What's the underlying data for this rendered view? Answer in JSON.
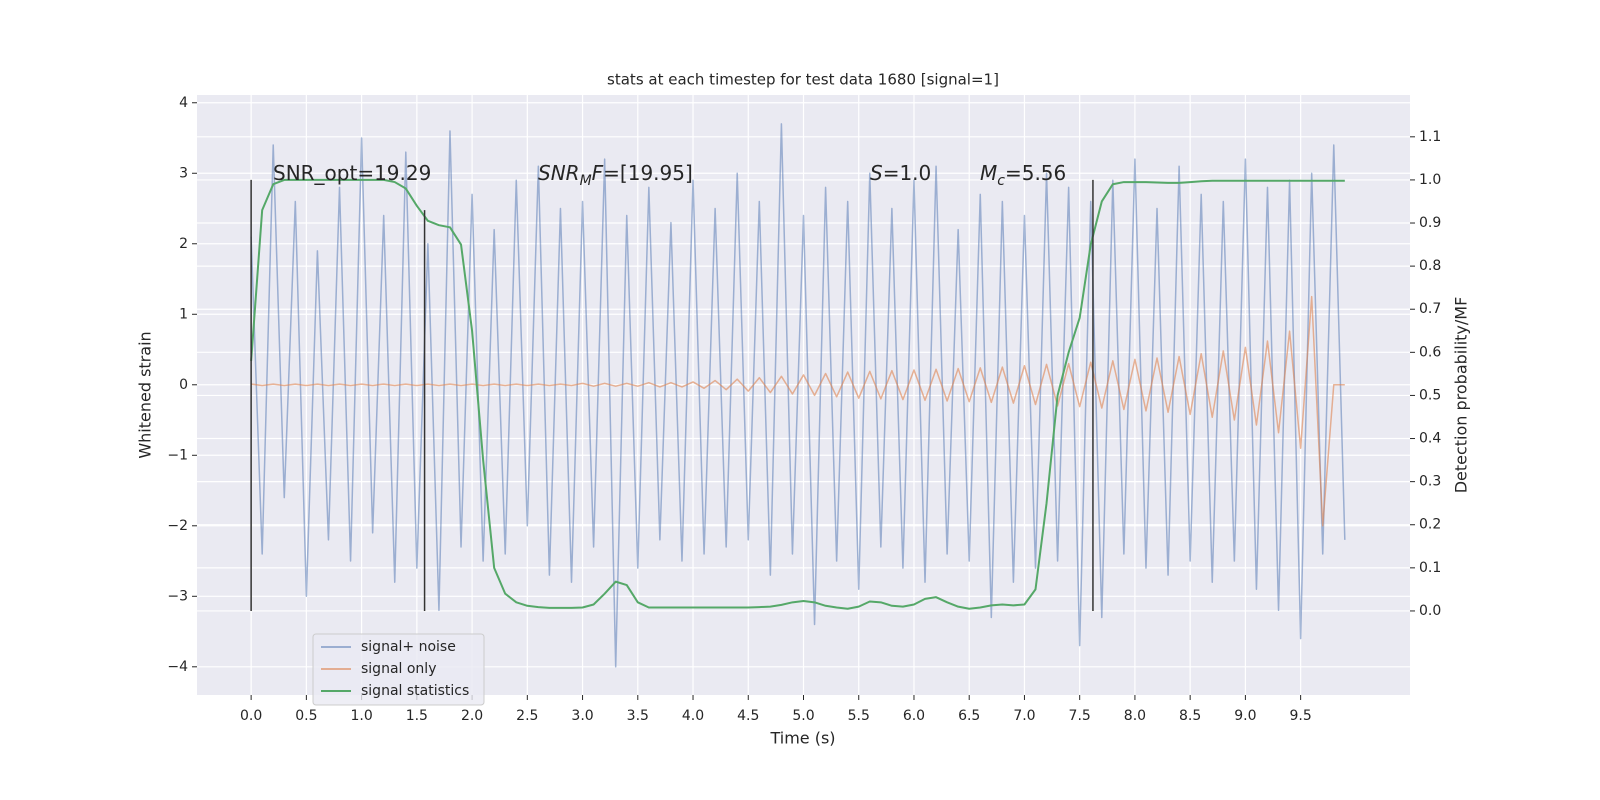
{
  "chart_data": {
    "type": "line",
    "title": "stats at each timestep for test data 1680 [signal=1]",
    "x_label": "Time (s)",
    "y_label": "Whitened strain",
    "y2_label": "Detection probability/MF",
    "xlim": [
      -0.49,
      10.49
    ],
    "ylim": [
      -4.4,
      4.11
    ],
    "y2lim": [
      -0.195,
      1.197
    ],
    "xticks": [
      {
        "value": 0,
        "label": "0.0"
      },
      0.5,
      {
        "value": 1,
        "label": "1.0"
      },
      1.5,
      {
        "value": 2,
        "label": "2.0"
      },
      2.5,
      {
        "value": 3,
        "label": "3.0"
      },
      3.5,
      {
        "value": 4,
        "label": "4.0"
      },
      4.5,
      {
        "value": 5,
        "label": "5.0"
      },
      5.5,
      {
        "value": 6,
        "label": "6.0"
      },
      6.5,
      {
        "value": 7,
        "label": "7.0"
      },
      7.5,
      {
        "value": 8,
        "label": "8.0"
      },
      8.5,
      {
        "value": 9,
        "label": "9.0"
      },
      9.5
    ],
    "yticks": [
      {
        "value": -4,
        "label": "−4"
      },
      {
        "value": -3,
        "label": "−3"
      },
      {
        "value": -2,
        "label": "−2"
      },
      {
        "value": -1,
        "label": "−1"
      },
      0,
      1,
      2,
      3,
      4
    ],
    "y2ticks": [
      {
        "value": 0,
        "label": "0.0"
      },
      0.1,
      0.2,
      0.3,
      0.4,
      0.5,
      0.6,
      0.7,
      0.8,
      0.9,
      {
        "value": 1,
        "label": "1.0"
      },
      1.1
    ],
    "grid": true,
    "legend": "lower left",
    "x": [
      0,
      0.1,
      0.2,
      0.3,
      0.4,
      0.5,
      0.6,
      0.7,
      0.8,
      0.9,
      1,
      1.1,
      1.2,
      1.3,
      1.4,
      1.5,
      1.6,
      1.7,
      1.8,
      1.9,
      2,
      2.1,
      2.2,
      2.3,
      2.4,
      2.5,
      2.6,
      2.7,
      2.8,
      2.9,
      3,
      3.1,
      3.2,
      3.3,
      3.4,
      3.5,
      3.6,
      3.7,
      3.8,
      3.9,
      4,
      4.1,
      4.2,
      4.3,
      4.4,
      4.5,
      4.6,
      4.7,
      4.8,
      4.9,
      5,
      5.1,
      5.2,
      5.3,
      5.4,
      5.5,
      5.6,
      5.7,
      5.8,
      5.9,
      6,
      6.1,
      6.2,
      6.3,
      6.4,
      6.5,
      6.6,
      6.7,
      6.8,
      6.9,
      7,
      7.1,
      7.2,
      7.3,
      7.4,
      7.5,
      7.6,
      7.7,
      7.8,
      7.9,
      8,
      8.1,
      8.2,
      8.3,
      8.4,
      8.5,
      8.6,
      8.7,
      8.8,
      8.9,
      9,
      9.1,
      9.2,
      9.3,
      9.4,
      9.5,
      9.6,
      9.7,
      9.8,
      9.9
    ],
    "series": [
      {
        "name": "signal+ noise",
        "color": "#4c72b0",
        "alpha": 0.5,
        "values": [
          2.1,
          -2.4,
          3.4,
          -1.6,
          2.6,
          -3.0,
          1.9,
          -2.2,
          2.8,
          -2.5,
          3.5,
          -2.1,
          2.4,
          -2.8,
          3.3,
          -2.6,
          2.0,
          -3.2,
          3.6,
          -2.3,
          2.7,
          -2.5,
          2.2,
          -2.4,
          2.9,
          -2.0,
          3.1,
          -2.7,
          2.5,
          -2.8,
          2.6,
          -2.3,
          3.2,
          -4.0,
          2.4,
          -2.6,
          2.8,
          -2.2,
          2.3,
          -2.5,
          2.9,
          -2.4,
          2.5,
          -2.3,
          3.0,
          -2.2,
          2.6,
          -2.7,
          3.7,
          -2.4,
          2.4,
          -3.4,
          2.8,
          -2.5,
          2.6,
          -2.9,
          3.0,
          -2.3,
          2.5,
          -2.6,
          2.9,
          -2.8,
          3.1,
          -2.4,
          2.2,
          -2.5,
          2.7,
          -3.3,
          2.6,
          -2.8,
          2.4,
          -2.6,
          3.0,
          -2.5,
          2.8,
          -3.7,
          2.6,
          -3.3,
          2.9,
          -2.4,
          3.2,
          -2.6,
          2.5,
          -2.7,
          3.1,
          -2.5,
          2.7,
          -2.8,
          2.6,
          -2.5,
          3.2,
          -2.9,
          2.8,
          -3.2,
          2.9,
          -3.6,
          3.0,
          -2.4,
          3.4,
          -2.2
        ]
      },
      {
        "name": "signal only",
        "color": "#dd8452",
        "alpha": 0.6,
        "values": [
          0.01,
          -0.01,
          0.01,
          -0.01,
          0.01,
          -0.01,
          0.01,
          -0.01,
          0.01,
          -0.01,
          0.01,
          -0.01,
          0.01,
          -0.01,
          0.01,
          -0.01,
          0.01,
          -0.01,
          0.01,
          -0.01,
          0.01,
          -0.01,
          0.01,
          -0.01,
          0.01,
          -0.01,
          0.01,
          -0.01,
          0.01,
          -0.01,
          0.02,
          -0.02,
          0.02,
          -0.02,
          0.02,
          -0.02,
          0.03,
          -0.03,
          0.03,
          -0.03,
          0.04,
          -0.05,
          0.06,
          -0.07,
          0.08,
          -0.09,
          0.1,
          -0.11,
          0.12,
          -0.13,
          0.14,
          -0.15,
          0.16,
          -0.17,
          0.18,
          -0.19,
          0.19,
          -0.2,
          0.2,
          -0.21,
          0.21,
          -0.22,
          0.22,
          -0.23,
          0.23,
          -0.24,
          0.24,
          -0.25,
          0.25,
          -0.26,
          0.27,
          -0.28,
          0.29,
          -0.3,
          0.3,
          -0.31,
          0.32,
          -0.33,
          0.34,
          -0.35,
          0.36,
          -0.37,
          0.38,
          -0.39,
          0.4,
          -0.42,
          0.44,
          -0.46,
          0.48,
          -0.5,
          0.53,
          -0.57,
          0.62,
          -0.68,
          0.76,
          -0.9,
          1.25,
          -2.0,
          0,
          0
        ]
      },
      {
        "name": "signal statistics",
        "color": "#55a868",
        "alpha": 1,
        "axis": "y2",
        "values": [
          0.58,
          0.93,
          0.99,
          1.0,
          1.0,
          1.0,
          1.0,
          1.0,
          1.0,
          1.0,
          1.0,
          1.0,
          1.0,
          0.995,
          0.98,
          0.94,
          0.905,
          0.895,
          0.89,
          0.85,
          0.65,
          0.35,
          0.1,
          0.04,
          0.02,
          0.012,
          0.009,
          0.007,
          0.007,
          0.007,
          0.008,
          0.015,
          0.04,
          0.068,
          0.06,
          0.02,
          0.008,
          0.008,
          0.008,
          0.008,
          0.008,
          0.008,
          0.008,
          0.008,
          0.008,
          0.008,
          0.009,
          0.01,
          0.014,
          0.02,
          0.023,
          0.02,
          0.012,
          0.008,
          0.005,
          0.01,
          0.022,
          0.02,
          0.012,
          0.01,
          0.015,
          0.028,
          0.032,
          0.02,
          0.01,
          0.005,
          0.008,
          0.013,
          0.015,
          0.013,
          0.015,
          0.05,
          0.25,
          0.5,
          0.6,
          0.68,
          0.85,
          0.95,
          0.99,
          0.995,
          0.995,
          0.995,
          0.994,
          0.993,
          0.993,
          0.995,
          0.997,
          0.998,
          0.998,
          0.998,
          0.998,
          0.998,
          0.998,
          0.998,
          0.998,
          0.998,
          0.998,
          0.998,
          0.998,
          0.998
        ]
      }
    ],
    "vlines": [
      {
        "x": 0,
        "top": 1.0
      },
      {
        "x": 1.57,
        "top": 0.93
      },
      {
        "x": 7.62,
        "top": 1.0
      }
    ],
    "vline_color": "#333333",
    "annotations": [
      {
        "parts": [
          {
            "text": "SNR_opt=19.29",
            "style": "normal"
          }
        ]
      },
      {
        "parts": [
          {
            "text": "SNR",
            "style": "italic"
          },
          {
            "text": "M",
            "style": "sub"
          },
          {
            "text": "F",
            "style": "italic"
          },
          {
            "text": "=[19.95]",
            "style": "normal"
          }
        ]
      },
      {
        "parts": [
          {
            "text": "S",
            "style": "italic"
          },
          {
            "text": "=1.0",
            "style": "normal"
          }
        ]
      },
      {
        "parts": [
          {
            "text": "M",
            "style": "italic"
          },
          {
            "text": "c",
            "style": "sub"
          },
          {
            "text": "=5.56",
            "style": "normal"
          }
        ]
      }
    ]
  }
}
